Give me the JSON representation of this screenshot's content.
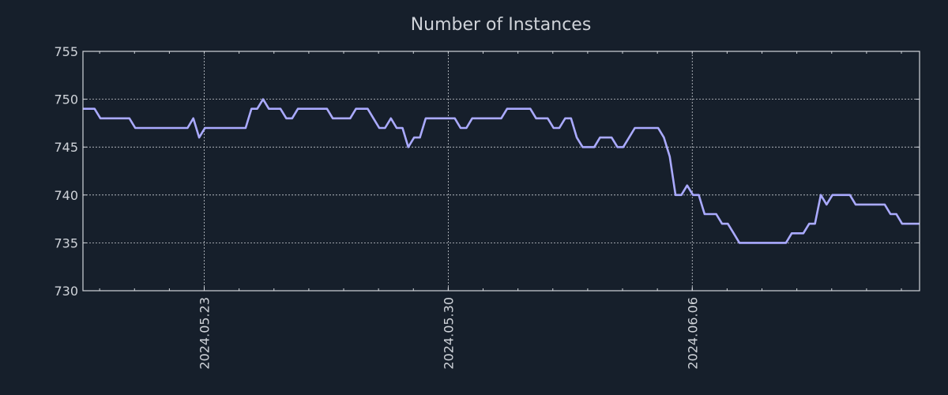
{
  "chart_data": {
    "type": "line",
    "title": "Number of Instances",
    "xlabel": "",
    "ylabel": "",
    "x_start": "2024-05-19 12:30",
    "x_step_hours": 4,
    "x_range_hours_from_start": [
      0,
      576
    ],
    "ylim": [
      730,
      755
    ],
    "y_ticks": [
      730,
      735,
      740,
      745,
      750,
      755
    ],
    "y_tick_labels": [
      "730",
      "735",
      "740",
      "745",
      "750",
      "755"
    ],
    "x_ticks_hours_from_start": [
      83.5,
      251.5,
      419.5
    ],
    "x_tick_labels": [
      "2024.05.23",
      "2024.05.30",
      "2024.06.06"
    ],
    "x_minor_tick_interval_hours": 24,
    "grid": true,
    "legend": "none",
    "series": [
      {
        "name": "Number of Instances",
        "color": "#aaaaff",
        "values": [
          749,
          749,
          749,
          748,
          748,
          748,
          748,
          748,
          748,
          747,
          747,
          747,
          747,
          747,
          747,
          747,
          747,
          747,
          747,
          748,
          746,
          747,
          747,
          747,
          747,
          747,
          747,
          747,
          747,
          749,
          749,
          750,
          749,
          749,
          749,
          748,
          748,
          749,
          749,
          749,
          749,
          749,
          749,
          748,
          748,
          748,
          748,
          749,
          749,
          749,
          748,
          747,
          747,
          748,
          747,
          747,
          745,
          746,
          746,
          748,
          748,
          748,
          748,
          748,
          748,
          747,
          747,
          748,
          748,
          748,
          748,
          748,
          748,
          749,
          749,
          749,
          749,
          749,
          748,
          748,
          748,
          747,
          747,
          748,
          748,
          746,
          745,
          745,
          745,
          746,
          746,
          746,
          745,
          745,
          746,
          747,
          747,
          747,
          747,
          747,
          746,
          744,
          740,
          740,
          741,
          740,
          740,
          738,
          738,
          738,
          737,
          737,
          736,
          735,
          735,
          735,
          735,
          735,
          735,
          735,
          735,
          735,
          736,
          736,
          736,
          737,
          737,
          740,
          739,
          740,
          740,
          740,
          740,
          739,
          739,
          739,
          739,
          739,
          739,
          738,
          738,
          737,
          737,
          737,
          737
        ]
      }
    ],
    "colors": {
      "background": "#161f2b",
      "axis": "#d0d4da",
      "grid": "#c8ccd2",
      "line": "#aaaaff"
    }
  }
}
